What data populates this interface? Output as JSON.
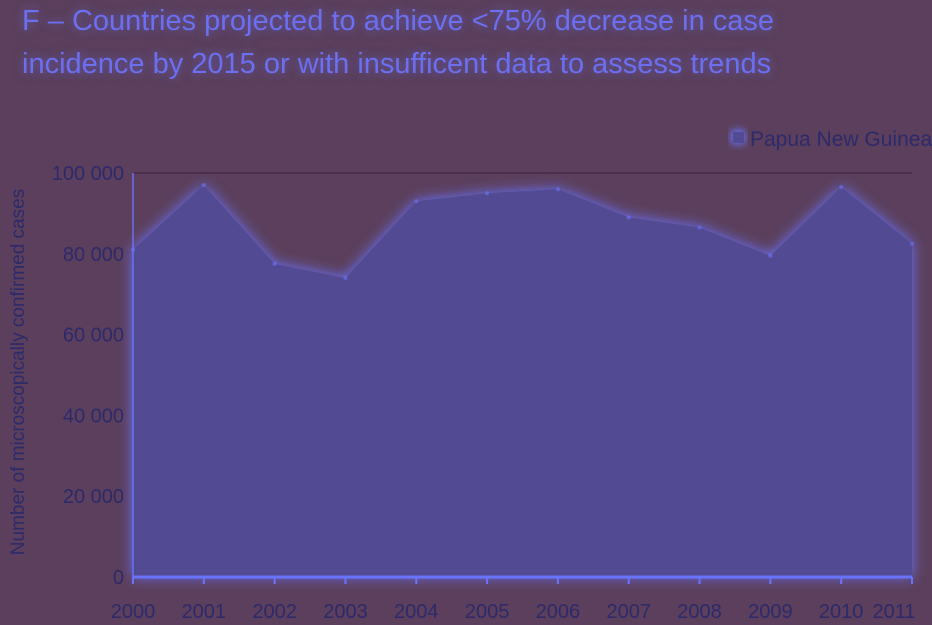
{
  "chart_data": {
    "type": "area",
    "title": "F – Countries projected to achieve <75% decrease in case incidence by 2015 or with insufficent data to assess trends",
    "xlabel": "",
    "ylabel": "Number of microscopically confirmed cases",
    "x": [
      "2000",
      "2001",
      "2002",
      "2003",
      "2004",
      "2005",
      "2006",
      "2007",
      "2008",
      "2009",
      "2010",
      "2011"
    ],
    "yticks": [
      "0",
      "20 000",
      "40 000",
      "60 000",
      "80 000",
      "100 000"
    ],
    "ylim": [
      0,
      100000
    ],
    "series": [
      {
        "name": "Papua New Guinea",
        "values": [
          81000,
          97000,
          77500,
          74000,
          93000,
          95000,
          96000,
          89000,
          86500,
          79500,
          96500,
          82500
        ]
      }
    ],
    "grid": "horizontal line at 100 000",
    "legend": "top-right",
    "colors": {
      "area_fill": "#524a93",
      "area_glow": "#6a73ff",
      "text": "#2d2a6b",
      "title": "#6b6ff0",
      "background": "#5b3f5c",
      "gridline": "#4a2f4c"
    }
  }
}
